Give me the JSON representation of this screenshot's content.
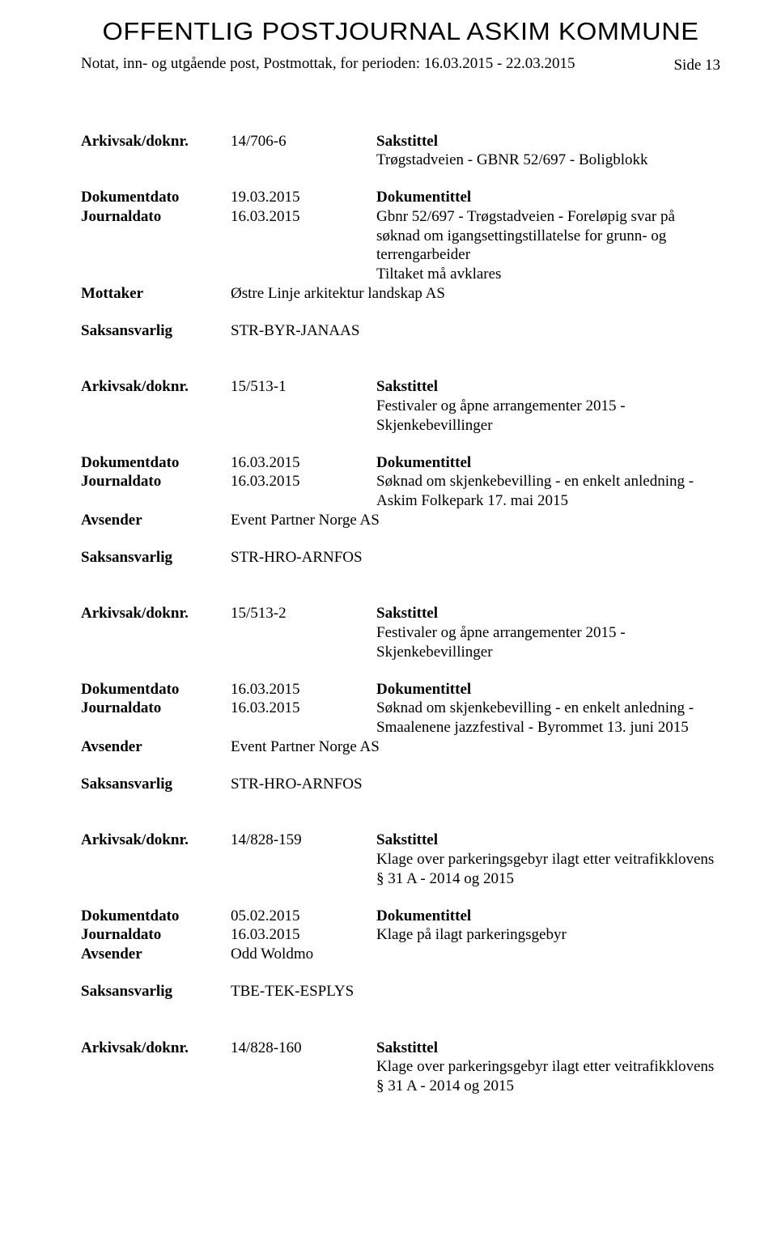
{
  "header": {
    "title": "OFFENTLIG POSTJOURNAL ASKIM KOMMUNE",
    "subtitle": "Notat, inn- og utgående post, Postmottak, for perioden: 16.03.2015 - 22.03.2015",
    "pageLabel": "Side 13"
  },
  "labels": {
    "arkivsak": "Arkivsak/doknr.",
    "sakstittel": "Sakstittel",
    "dokumentdato": "Dokumentdato",
    "dokumentittel": "Dokumentittel",
    "journaldato": "Journaldato",
    "mottaker": "Mottaker",
    "avsender": "Avsender",
    "saksansvarlig": "Saksansvarlig"
  },
  "entries": [
    {
      "arkivsak": "14/706-6",
      "sakstittel": "Trøgstadveien - GBNR 52/697 - Boligblokk",
      "dokumentdato": "19.03.2015",
      "journaldato": "16.03.2015",
      "dokumentittel": "Gbnr 52/697 - Trøgstadveien - Foreløpig svar på søknad om igangsettingstillatelse for grunn- og terrengarbeider\nTiltaket må avklares",
      "partyLabel": "Mottaker",
      "party": "Østre Linje arkitektur landskap AS",
      "saksansvarlig": "STR-BYR-JANAAS"
    },
    {
      "arkivsak": "15/513-1",
      "sakstittel": "Festivaler og åpne arrangementer 2015 - Skjenkebevillinger",
      "dokumentdato": "16.03.2015",
      "journaldato": "16.03.2015",
      "dokumentittel": "Søknad om skjenkebevilling - en enkelt anledning - Askim Folkepark 17. mai 2015",
      "partyLabel": "Avsender",
      "party": "Event Partner Norge AS",
      "saksansvarlig": "STR-HRO-ARNFOS"
    },
    {
      "arkivsak": "15/513-2",
      "sakstittel": "Festivaler og åpne arrangementer 2015 - Skjenkebevillinger",
      "dokumentdato": "16.03.2015",
      "journaldato": "16.03.2015",
      "dokumentittel": "Søknad om skjenkebevilling - en enkelt anledning - Smaalenene jazzfestival - Byrommet 13. juni 2015",
      "partyLabel": "Avsender",
      "party": "Event Partner Norge AS",
      "saksansvarlig": "STR-HRO-ARNFOS"
    },
    {
      "arkivsak": "14/828-159",
      "sakstittel": "Klage over parkeringsgebyr ilagt etter veitrafikklovens § 31 A - 2014 og 2015",
      "dokumentdato": "05.02.2015",
      "journaldato": "16.03.2015",
      "dokumentittel": "Klage på ilagt parkeringsgebyr",
      "partyLabel": "Avsender",
      "party": "Odd Woldmo",
      "saksansvarlig": "TBE-TEK-ESPLYS"
    },
    {
      "arkivsak": "14/828-160",
      "sakstittel": "Klage over parkeringsgebyr ilagt etter veitrafikklovens § 31 A - 2014 og 2015"
    }
  ]
}
